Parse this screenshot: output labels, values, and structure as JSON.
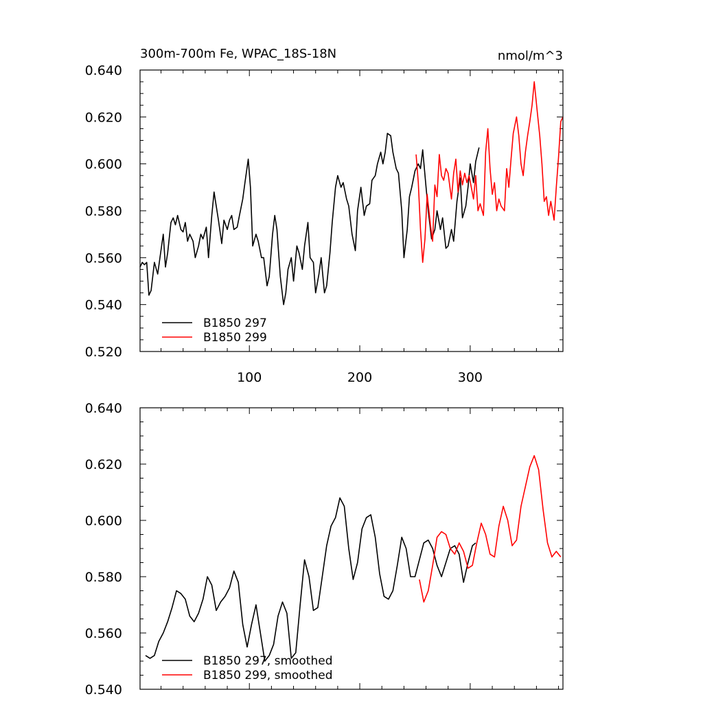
{
  "chart_data": [
    {
      "type": "line",
      "panel": "top",
      "title": "300m-700m Fe, WPAC_18S-18N",
      "units": "nmol/m^3",
      "xlim": [
        1,
        384
      ],
      "ylim": [
        0.52,
        0.64
      ],
      "yticks": [
        0.52,
        0.54,
        0.56,
        0.58,
        0.6,
        0.62,
        0.64
      ],
      "ytick_labels": [
        "0.520",
        "0.540",
        "0.560",
        "0.580",
        "0.600",
        "0.620",
        "0.640"
      ],
      "xticks": [
        100,
        200,
        300
      ],
      "xtick_labels": [
        "100",
        "200",
        "300"
      ],
      "legend": [
        "B1850 297",
        "B1850 299"
      ],
      "series": [
        {
          "name": "B1850 297",
          "color": "#000000",
          "x": [
            1,
            3,
            5,
            7,
            9,
            11,
            14,
            17,
            19,
            22,
            24,
            26,
            29,
            31,
            33,
            35,
            38,
            40,
            42,
            44,
            46,
            49,
            51,
            54,
            56,
            58,
            61,
            63,
            66,
            68,
            70,
            72,
            75,
            77,
            80,
            82,
            84,
            86,
            89,
            91,
            94,
            96,
            99,
            101,
            103,
            106,
            108,
            111,
            113,
            116,
            118,
            121,
            123,
            125,
            128,
            131,
            133,
            135,
            138,
            140,
            143,
            145,
            148,
            150,
            153,
            155,
            158,
            160,
            163,
            165,
            168,
            170,
            173,
            175,
            178,
            180,
            183,
            185,
            188,
            190,
            193,
            196,
            198,
            201,
            204,
            206,
            209,
            211,
            214,
            216,
            219,
            221,
            223,
            225,
            228,
            230,
            233,
            235,
            238,
            240,
            243,
            245,
            247,
            250,
            253,
            255,
            257,
            260,
            262,
            265,
            268,
            270,
            273,
            275,
            278,
            280,
            283,
            285,
            288,
            291,
            293,
            296,
            298,
            300,
            303,
            305,
            308
          ],
          "y": [
            0.556,
            0.558,
            0.557,
            0.558,
            0.544,
            0.546,
            0.558,
            0.553,
            0.56,
            0.57,
            0.556,
            0.562,
            0.575,
            0.577,
            0.574,
            0.578,
            0.572,
            0.571,
            0.575,
            0.567,
            0.57,
            0.567,
            0.56,
            0.565,
            0.57,
            0.568,
            0.573,
            0.56,
            0.578,
            0.588,
            0.582,
            0.576,
            0.566,
            0.576,
            0.572,
            0.576,
            0.578,
            0.572,
            0.573,
            0.578,
            0.585,
            0.592,
            0.602,
            0.59,
            0.565,
            0.57,
            0.567,
            0.56,
            0.56,
            0.548,
            0.552,
            0.57,
            0.578,
            0.572,
            0.552,
            0.54,
            0.545,
            0.555,
            0.56,
            0.55,
            0.565,
            0.562,
            0.555,
            0.565,
            0.575,
            0.56,
            0.558,
            0.545,
            0.553,
            0.56,
            0.545,
            0.548,
            0.562,
            0.575,
            0.59,
            0.595,
            0.59,
            0.592,
            0.585,
            0.582,
            0.57,
            0.563,
            0.58,
            0.59,
            0.578,
            0.582,
            0.583,
            0.593,
            0.595,
            0.6,
            0.605,
            0.6,
            0.605,
            0.613,
            0.612,
            0.605,
            0.598,
            0.596,
            0.58,
            0.56,
            0.572,
            0.586,
            0.59,
            0.597,
            0.6,
            0.598,
            0.606,
            0.59,
            0.58,
            0.568,
            0.572,
            0.58,
            0.572,
            0.577,
            0.564,
            0.565,
            0.572,
            0.567,
            0.584,
            0.594,
            0.577,
            0.582,
            0.59,
            0.6,
            0.592,
            0.601,
            0.607
          ]
        },
        {
          "name": "B1850 299",
          "color": "#ff0000",
          "x": [
            251,
            253,
            255,
            257,
            259,
            261,
            264,
            266,
            268,
            270,
            272,
            274,
            276,
            278,
            280,
            283,
            285,
            287,
            289,
            291,
            293,
            295,
            297,
            299,
            301,
            303,
            305,
            307,
            309,
            312,
            314,
            316,
            318,
            320,
            322,
            324,
            326,
            328,
            331,
            333,
            335,
            337,
            339,
            342,
            344,
            346,
            348,
            350,
            352,
            354,
            356,
            358,
            361,
            363,
            365,
            367,
            369,
            371,
            373,
            376,
            378,
            380,
            382,
            384
          ],
          "y": [
            0.604,
            0.592,
            0.572,
            0.558,
            0.568,
            0.587,
            0.574,
            0.567,
            0.591,
            0.586,
            0.604,
            0.595,
            0.593,
            0.598,
            0.596,
            0.585,
            0.596,
            0.602,
            0.588,
            0.597,
            0.591,
            0.596,
            0.592,
            0.595,
            0.59,
            0.585,
            0.595,
            0.58,
            0.583,
            0.578,
            0.605,
            0.615,
            0.598,
            0.587,
            0.592,
            0.58,
            0.585,
            0.582,
            0.58,
            0.598,
            0.59,
            0.602,
            0.613,
            0.62,
            0.612,
            0.6,
            0.595,
            0.605,
            0.612,
            0.618,
            0.625,
            0.635,
            0.621,
            0.612,
            0.6,
            0.584,
            0.586,
            0.578,
            0.584,
            0.576,
            0.59,
            0.603,
            0.618,
            0.62
          ]
        }
      ]
    },
    {
      "type": "line",
      "panel": "bottom",
      "title": "",
      "xlim": [
        1,
        384
      ],
      "ylim": [
        0.54,
        0.64
      ],
      "yticks": [
        0.54,
        0.56,
        0.58,
        0.6,
        0.62,
        0.64
      ],
      "ytick_labels": [
        "0.540",
        "0.560",
        "0.580",
        "0.600",
        "0.620",
        "0.640"
      ],
      "xticks": [
        100,
        200,
        300
      ],
      "xtick_labels": [],
      "legend": [
        "B1850 297, smoothed",
        "B1850 299, smoothed"
      ],
      "series": [
        {
          "name": "B1850 297, smoothed",
          "color": "#000000",
          "x": [
            6,
            10,
            14,
            18,
            22,
            26,
            30,
            34,
            38,
            42,
            46,
            50,
            54,
            58,
            62,
            66,
            70,
            74,
            78,
            82,
            86,
            90,
            94,
            98,
            102,
            106,
            110,
            114,
            118,
            122,
            126,
            130,
            134,
            138,
            142,
            146,
            150,
            154,
            158,
            162,
            166,
            170,
            174,
            178,
            182,
            186,
            190,
            194,
            198,
            202,
            206,
            210,
            214,
            218,
            222,
            226,
            230,
            234,
            238,
            242,
            246,
            250,
            254,
            258,
            262,
            266,
            270,
            274,
            278,
            282,
            286,
            290,
            294,
            298,
            302,
            305
          ],
          "y": [
            0.552,
            0.551,
            0.552,
            0.557,
            0.56,
            0.564,
            0.569,
            0.575,
            0.574,
            0.572,
            0.566,
            0.564,
            0.567,
            0.572,
            0.58,
            0.577,
            0.568,
            0.571,
            0.573,
            0.576,
            0.582,
            0.578,
            0.563,
            0.555,
            0.563,
            0.57,
            0.56,
            0.55,
            0.552,
            0.556,
            0.566,
            0.571,
            0.567,
            0.551,
            0.553,
            0.57,
            0.586,
            0.58,
            0.568,
            0.569,
            0.58,
            0.591,
            0.598,
            0.601,
            0.608,
            0.605,
            0.59,
            0.579,
            0.585,
            0.597,
            0.601,
            0.602,
            0.594,
            0.581,
            0.573,
            0.572,
            0.575,
            0.584,
            0.594,
            0.59,
            0.58,
            0.58,
            0.586,
            0.592,
            0.593,
            0.59,
            0.584,
            0.58,
            0.585,
            0.59,
            0.591,
            0.588,
            0.578,
            0.585,
            0.591,
            0.592
          ]
        },
        {
          "name": "B1850 299, smoothed",
          "color": "#ff0000",
          "x": [
            254,
            258,
            262,
            266,
            270,
            274,
            278,
            282,
            286,
            290,
            294,
            298,
            302,
            306,
            310,
            314,
            318,
            322,
            326,
            330,
            334,
            338,
            342,
            346,
            350,
            354,
            358,
            362,
            366,
            370,
            374,
            378,
            382
          ],
          "y": [
            0.579,
            0.571,
            0.575,
            0.584,
            0.594,
            0.596,
            0.595,
            0.59,
            0.588,
            0.592,
            0.589,
            0.583,
            0.584,
            0.592,
            0.599,
            0.595,
            0.588,
            0.587,
            0.598,
            0.605,
            0.6,
            0.591,
            0.593,
            0.605,
            0.612,
            0.619,
            0.623,
            0.618,
            0.604,
            0.592,
            0.587,
            0.589,
            0.587
          ]
        }
      ]
    }
  ]
}
